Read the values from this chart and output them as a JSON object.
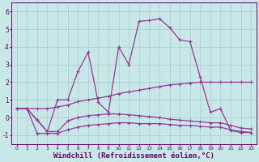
{
  "background_color": "#c8e8e8",
  "grid_color": "#a8cccc",
  "line_color": "#993399",
  "xlim": [
    -0.5,
    23.5
  ],
  "ylim": [
    -1.5,
    6.5
  ],
  "yticks": [
    -1,
    0,
    1,
    2,
    3,
    4,
    5,
    6
  ],
  "xticks": [
    0,
    1,
    2,
    3,
    4,
    5,
    6,
    7,
    8,
    9,
    10,
    11,
    12,
    13,
    14,
    15,
    16,
    17,
    18,
    19,
    20,
    21,
    22,
    23
  ],
  "xlabel": "Windchill (Refroidissement éolien,°C)",
  "xlabel_fontsize": 6.5,
  "line1_x": [
    0,
    1,
    2,
    3,
    4,
    5,
    6,
    7,
    8,
    9,
    10,
    11,
    12,
    13,
    14,
    15,
    16,
    17,
    18,
    19,
    20,
    21,
    22,
    23
  ],
  "line1_y": [
    0.5,
    0.5,
    -0.9,
    -0.9,
    -0.9,
    -0.7,
    -0.55,
    -0.45,
    -0.4,
    -0.35,
    -0.3,
    -0.3,
    -0.35,
    -0.35,
    -0.35,
    -0.4,
    -0.45,
    -0.45,
    -0.5,
    -0.55,
    -0.55,
    -0.7,
    -0.8,
    -0.85
  ],
  "line2_x": [
    0,
    1,
    2,
    3,
    4,
    5,
    6,
    7,
    8,
    9,
    10,
    11,
    12,
    13,
    14,
    15,
    16,
    17,
    18,
    19,
    20,
    21,
    22,
    23
  ],
  "line2_y": [
    0.5,
    0.5,
    -0.15,
    -0.8,
    -0.8,
    -0.2,
    0.0,
    0.1,
    0.15,
    0.2,
    0.2,
    0.15,
    0.1,
    0.05,
    0.0,
    -0.1,
    -0.15,
    -0.2,
    -0.25,
    -0.3,
    -0.3,
    -0.45,
    -0.6,
    -0.65
  ],
  "line3_x": [
    0,
    1,
    2,
    3,
    4,
    5,
    6,
    7,
    8,
    9,
    10,
    11,
    12,
    13,
    14,
    15,
    16,
    17,
    18,
    19,
    20,
    21,
    22,
    23
  ],
  "line3_y": [
    0.5,
    0.5,
    0.5,
    0.5,
    0.6,
    0.7,
    0.9,
    1.0,
    1.1,
    1.2,
    1.35,
    1.45,
    1.55,
    1.65,
    1.75,
    1.85,
    1.9,
    1.95,
    2.0,
    2.0,
    2.0,
    2.0,
    2.0,
    2.0
  ],
  "line4_x": [
    0,
    1,
    2,
    3,
    4,
    5,
    6,
    7,
    8,
    9,
    10,
    11,
    12,
    13,
    14,
    15,
    16,
    17,
    18,
    19,
    20,
    21,
    22,
    23
  ],
  "line4_y": [
    0.5,
    0.5,
    -0.15,
    -0.8,
    1.0,
    1.0,
    2.6,
    3.7,
    0.85,
    0.3,
    4.0,
    3.0,
    5.45,
    5.5,
    5.6,
    5.1,
    4.4,
    4.3,
    2.3,
    0.3,
    0.5,
    -0.75,
    -0.85,
    -0.85
  ]
}
